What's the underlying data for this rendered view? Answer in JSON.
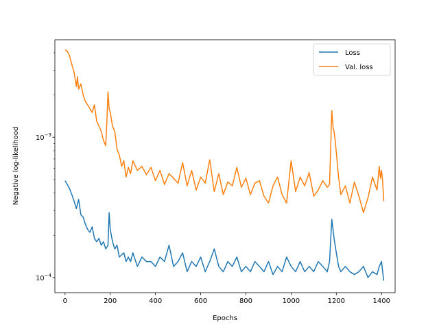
{
  "chart_data": {
    "type": "line",
    "xlabel": "Epochs",
    "ylabel": "Negative log-likelihood",
    "xlim": [
      -45,
      1460
    ],
    "ylim": [
      7.8e-05,
      0.00495
    ],
    "yscale": "log",
    "grid": false,
    "legend_position": "top-right",
    "x_ticks": [
      {
        "value": 0,
        "label": "0"
      },
      {
        "value": 200,
        "label": "200"
      },
      {
        "value": 400,
        "label": "400"
      },
      {
        "value": 600,
        "label": "600"
      },
      {
        "value": 800,
        "label": "800"
      },
      {
        "value": 1000,
        "label": "1000"
      },
      {
        "value": 1200,
        "label": "1200"
      },
      {
        "value": 1400,
        "label": "1400"
      }
    ],
    "y_major_ticks": [
      {
        "value": 0.0001,
        "label_base": "10",
        "label_exp": "−4"
      },
      {
        "value": 0.001,
        "label_base": "10",
        "label_exp": "−3"
      }
    ],
    "y_minor_ticks": [
      0.0002,
      0.0003,
      0.0004,
      0.0005,
      0.0006,
      0.0007,
      0.0008,
      0.0009,
      0.002,
      0.003,
      0.004
    ],
    "series": [
      {
        "name": "Loss",
        "color": "#1f77b4",
        "x": [
          0,
          10,
          20,
          30,
          40,
          50,
          60,
          70,
          80,
          90,
          100,
          110,
          120,
          130,
          140,
          150,
          160,
          170,
          180,
          190,
          195,
          200,
          210,
          220,
          230,
          240,
          250,
          260,
          270,
          280,
          290,
          300,
          320,
          340,
          360,
          380,
          400,
          420,
          440,
          460,
          480,
          500,
          520,
          540,
          560,
          580,
          600,
          620,
          640,
          660,
          680,
          700,
          720,
          740,
          760,
          780,
          800,
          820,
          840,
          860,
          880,
          900,
          920,
          940,
          960,
          980,
          1000,
          1020,
          1040,
          1060,
          1080,
          1100,
          1120,
          1140,
          1160,
          1170,
          1180,
          1190,
          1200,
          1210,
          1220,
          1240,
          1260,
          1280,
          1300,
          1320,
          1340,
          1360,
          1380,
          1390,
          1400,
          1405,
          1410
        ],
        "y": [
          0.00049,
          0.00046,
          0.00043,
          0.00039,
          0.00035,
          0.00031,
          0.00036,
          0.00028,
          0.00027,
          0.00024,
          0.00022,
          0.00021,
          0.00023,
          0.00019,
          0.00018,
          0.00019,
          0.00017,
          0.00018,
          0.00016,
          0.00017,
          0.00029,
          0.00022,
          0.00018,
          0.00016,
          0.00017,
          0.00014,
          0.000145,
          0.00015,
          0.00013,
          0.00014,
          0.00013,
          0.00015,
          0.00012,
          0.00014,
          0.00013,
          0.00013,
          0.00012,
          0.00014,
          0.00013,
          0.00017,
          0.00012,
          0.00013,
          0.00015,
          0.00011,
          0.00013,
          0.00012,
          0.00014,
          0.00011,
          0.00013,
          0.00016,
          0.00012,
          0.00011,
          0.00013,
          0.00012,
          0.00014,
          0.00011,
          0.00012,
          0.00011,
          0.00013,
          0.00012,
          0.00011,
          0.00013,
          0.000105,
          0.00012,
          0.00011,
          0.00014,
          0.00012,
          0.00011,
          0.00013,
          0.00011,
          0.00012,
          0.00011,
          0.00013,
          0.00012,
          0.00011,
          0.00013,
          0.00026,
          0.00019,
          0.00015,
          0.00012,
          0.00011,
          0.00012,
          0.00011,
          0.000105,
          0.00011,
          0.00012,
          0.0001,
          0.00011,
          0.000105,
          0.00012,
          0.00013,
          0.00011,
          9.5e-05
        ]
      },
      {
        "name": "Val. loss",
        "color": "#ff7f0e",
        "x": [
          0,
          10,
          20,
          30,
          40,
          50,
          55,
          60,
          70,
          80,
          90,
          100,
          110,
          120,
          130,
          140,
          150,
          160,
          170,
          180,
          185,
          190,
          195,
          200,
          210,
          220,
          230,
          240,
          250,
          260,
          270,
          280,
          290,
          300,
          320,
          340,
          360,
          380,
          400,
          420,
          440,
          460,
          480,
          500,
          520,
          540,
          560,
          580,
          600,
          620,
          640,
          660,
          680,
          700,
          720,
          740,
          760,
          780,
          800,
          820,
          840,
          860,
          880,
          900,
          920,
          940,
          960,
          980,
          1000,
          1020,
          1040,
          1060,
          1080,
          1100,
          1120,
          1140,
          1160,
          1170,
          1180,
          1185,
          1190,
          1195,
          1200,
          1210,
          1220,
          1240,
          1260,
          1280,
          1300,
          1320,
          1340,
          1360,
          1380,
          1390,
          1395,
          1400,
          1405,
          1410
        ],
        "y": [
          0.0042,
          0.0041,
          0.0038,
          0.0033,
          0.0029,
          0.0023,
          0.0027,
          0.0022,
          0.0024,
          0.002,
          0.0018,
          0.0017,
          0.0016,
          0.0015,
          0.0017,
          0.0013,
          0.0012,
          0.0011,
          0.00095,
          0.00087,
          0.0013,
          0.0021,
          0.0016,
          0.0015,
          0.0012,
          0.0011,
          0.00082,
          0.00075,
          0.00062,
          0.00068,
          0.00052,
          0.00061,
          0.00055,
          0.00068,
          0.00058,
          0.00062,
          0.00054,
          0.00061,
          0.00049,
          0.00058,
          0.00046,
          0.00055,
          0.00051,
          0.00047,
          0.00066,
          0.00045,
          0.00058,
          0.00042,
          0.00052,
          0.00047,
          0.00069,
          0.00041,
          0.00055,
          0.00039,
          0.00048,
          0.00045,
          0.00061,
          0.00044,
          0.00051,
          0.00039,
          0.00047,
          0.00049,
          0.00038,
          0.00034,
          0.00045,
          0.00052,
          0.00039,
          0.00034,
          0.00068,
          0.00041,
          0.00052,
          0.00045,
          0.00056,
          0.00038,
          0.00042,
          0.00049,
          0.00044,
          0.00046,
          0.00155,
          0.0012,
          0.0011,
          0.00095,
          0.00078,
          0.00052,
          0.00039,
          0.00045,
          0.00034,
          0.00048,
          0.00038,
          0.00029,
          0.00037,
          0.00052,
          0.00042,
          0.00062,
          0.00051,
          0.00058,
          0.00048,
          0.00035
        ]
      }
    ]
  }
}
